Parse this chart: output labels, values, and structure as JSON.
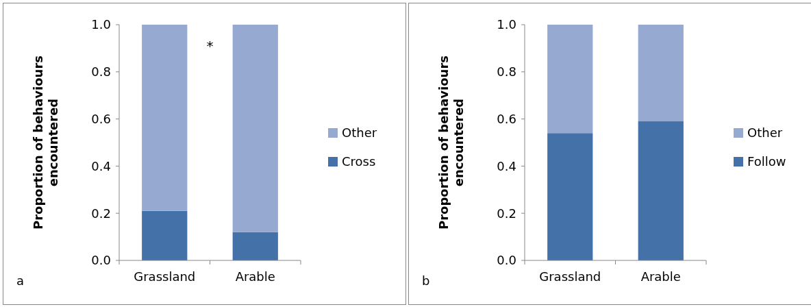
{
  "chart_data": [
    {
      "type": "bar",
      "stacked": true,
      "categories": [
        "Grassland",
        "Arable"
      ],
      "ylabel": "Proportion of behaviours encountered",
      "ylim": [
        0,
        1
      ],
      "yticks": [
        {
          "value": 0,
          "label": "0.0"
        },
        {
          "value": 0.2,
          "label": "0.2"
        },
        {
          "value": 0.4,
          "label": "0.4"
        },
        {
          "value": 0.6,
          "label": "0.6"
        },
        {
          "value": 0.8,
          "label": "0.8"
        },
        {
          "value": 1,
          "label": "1.0"
        }
      ],
      "grid": false,
      "legend": "right",
      "annotations": [
        "a",
        "*"
      ],
      "series": [
        {
          "name": "Cross",
          "color": "#4472a8",
          "values": [
            0.21,
            0.12
          ]
        },
        {
          "name": "Other",
          "color": "#95a9d1",
          "values": [
            0.79,
            0.88
          ]
        }
      ]
    },
    {
      "type": "bar",
      "stacked": true,
      "categories": [
        "Grassland",
        "Arable"
      ],
      "ylabel": "Proportion of behaviours encountered",
      "ylim": [
        0,
        1
      ],
      "yticks": [
        {
          "value": 0,
          "label": "0.0"
        },
        {
          "value": 0.2,
          "label": "0.2"
        },
        {
          "value": 0.4,
          "label": "0.4"
        },
        {
          "value": 0.6,
          "label": "0.6"
        },
        {
          "value": 0.8,
          "label": "0.8"
        },
        {
          "value": 1,
          "label": "1.0"
        }
      ],
      "grid": false,
      "legend": "right",
      "annotations": [
        "b"
      ],
      "series": [
        {
          "name": "Follow",
          "color": "#4472a8",
          "values": [
            0.54,
            0.59
          ]
        },
        {
          "name": "Other",
          "color": "#95a9d1",
          "values": [
            0.46,
            0.41
          ]
        }
      ]
    }
  ]
}
